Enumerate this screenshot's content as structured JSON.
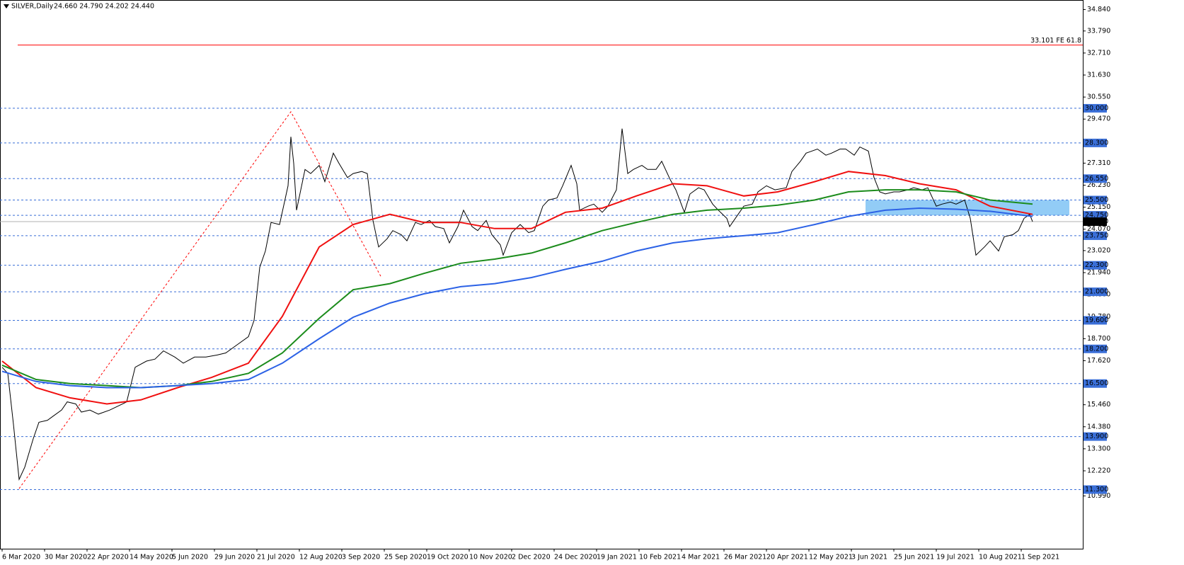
{
  "chart_data": {
    "type": "line",
    "title": "SILVER,Daily",
    "header_quote": "24.660 24.790 24.202 24.440",
    "xlim": [
      -0.75,
      381.75
    ],
    "ylim": [
      8.4,
      35.31
    ],
    "xticks": [
      {
        "value": 0,
        "label": "6 Mar 2020"
      },
      {
        "value": 15,
        "label": "30 Mar 2020"
      },
      {
        "value": 30,
        "label": "22 Apr 2020"
      },
      {
        "value": 45,
        "label": "14 May 2020"
      },
      {
        "value": 60,
        "label": "5 Jun 2020"
      },
      {
        "value": 75,
        "label": "29 Jun 2020"
      },
      {
        "value": 90,
        "label": "21 Jul 2020"
      },
      {
        "value": 105,
        "label": "12 Aug 2020"
      },
      {
        "value": 120,
        "label": "3 Sep 2020"
      },
      {
        "value": 135,
        "label": "25 Sep 2020"
      },
      {
        "value": 150,
        "label": "19 Oct 2020"
      },
      {
        "value": 165,
        "label": "10 Nov 2020"
      },
      {
        "value": 180,
        "label": "2 Dec 2020"
      },
      {
        "value": 195,
        "label": "24 Dec 2020"
      },
      {
        "value": 210,
        "label": "19 Jan 2021"
      },
      {
        "value": 225,
        "label": "10 Feb 2021"
      },
      {
        "value": 240,
        "label": "4 Mar 2021"
      },
      {
        "value": 255,
        "label": "26 Mar 2021"
      },
      {
        "value": 270,
        "label": "20 Apr 2021"
      },
      {
        "value": 285,
        "label": "12 May 2021"
      },
      {
        "value": 300,
        "label": "3 Jun 2021"
      },
      {
        "value": 315,
        "label": "25 Jun 2021"
      },
      {
        "value": 330,
        "label": "19 Jul 2021"
      },
      {
        "value": 345,
        "label": "10 Aug 2021"
      },
      {
        "value": 360,
        "label": "1 Sep 2021"
      }
    ],
    "yticks": [
      {
        "value": 34.84,
        "label": "34.840"
      },
      {
        "value": 33.79,
        "label": "33.790"
      },
      {
        "value": 32.71,
        "label": "32.710"
      },
      {
        "value": 31.63,
        "label": "31.630"
      },
      {
        "value": 30.55,
        "label": "30.550"
      },
      {
        "value": 29.47,
        "label": "29.470"
      },
      {
        "value": 27.31,
        "label": "27.310"
      },
      {
        "value": 26.23,
        "label": "26.230"
      },
      {
        "value": 25.15,
        "label": "25.150"
      },
      {
        "value": 24.07,
        "label": "24.070"
      },
      {
        "value": 23.02,
        "label": "23.020"
      },
      {
        "value": 21.94,
        "label": "21.940"
      },
      {
        "value": 20.86,
        "label": "20.860"
      },
      {
        "value": 19.78,
        "label": "19.780"
      },
      {
        "value": 18.7,
        "label": "18.700"
      },
      {
        "value": 17.62,
        "label": "17.620"
      },
      {
        "value": 15.46,
        "label": "15.460"
      },
      {
        "value": 14.38,
        "label": "14.380"
      },
      {
        "value": 13.3,
        "label": "13.300"
      },
      {
        "value": 12.22,
        "label": "12.220"
      },
      {
        "value": 10.99,
        "label": "10.990"
      }
    ],
    "levels": [
      {
        "value": 30,
        "label": "30.000"
      },
      {
        "value": 28.3,
        "label": "28.300"
      },
      {
        "value": 26.55,
        "label": "26.550"
      },
      {
        "value": 25.5,
        "label": "25.500"
      },
      {
        "value": 24.75,
        "label": "24.750"
      },
      {
        "value": 23.75,
        "label": "23.750"
      },
      {
        "value": 22.3,
        "label": "22.300"
      },
      {
        "value": 21,
        "label": "21.000"
      },
      {
        "value": 19.6,
        "label": "19.600"
      },
      {
        "value": 18.2,
        "label": "18.200"
      },
      {
        "value": 16.5,
        "label": "16.500"
      },
      {
        "value": 13.9,
        "label": "13.900"
      },
      {
        "value": 11.3,
        "label": "11.300"
      }
    ],
    "level_color": "#3a6fd8",
    "last": {
      "value": 24.44,
      "label": "24.440"
    },
    "zone": {
      "x": [
        305,
        377
      ],
      "y": [
        24.75,
        25.5
      ],
      "color": "#7fc3f5"
    },
    "fibo": {
      "x": [
        6,
        102,
        134
      ],
      "y": [
        11.35,
        29.83,
        21.7
      ],
      "color": "#ff0000",
      "target": {
        "value": 33.101,
        "label": "33.101 FE 61.8"
      }
    },
    "series": [
      {
        "color": "#000000",
        "x": [
          0,
          2,
          4,
          6,
          8,
          11,
          13,
          16,
          18,
          21,
          23,
          26,
          28,
          31,
          34,
          38,
          41,
          44,
          47,
          51,
          54,
          57,
          61,
          64,
          68,
          72,
          76,
          79,
          83,
          87,
          89,
          91,
          93,
          95,
          98,
          101,
          102,
          103,
          104,
          107,
          109,
          112,
          114,
          117,
          119,
          122,
          124,
          127,
          129,
          131,
          133,
          136,
          138,
          141,
          143,
          146,
          148,
          151,
          153,
          156,
          158,
          161,
          163,
          166,
          168,
          171,
          173,
          176,
          177,
          180,
          183,
          186,
          188,
          191,
          193,
          196,
          198,
          201,
          203,
          204,
          207,
          209,
          212,
          214,
          217,
          219,
          221,
          223,
          226,
          228,
          231,
          233,
          236,
          238,
          241,
          243,
          246,
          248,
          251,
          253,
          256,
          257,
          260,
          262,
          265,
          267,
          270,
          273,
          277,
          279,
          282,
          284,
          288,
          291,
          293,
          296,
          298,
          301,
          303,
          306,
          308,
          310,
          312,
          315,
          317,
          320,
          322,
          325,
          327,
          330,
          332,
          335,
          337,
          340,
          342,
          344,
          347,
          349,
          352,
          354,
          357,
          359,
          361,
          363,
          364
        ],
        "values": [
          17.3,
          17.0,
          14.5,
          11.8,
          12.4,
          13.8,
          14.6,
          14.7,
          14.9,
          15.2,
          15.6,
          15.5,
          15.1,
          15.2,
          15.0,
          15.2,
          15.4,
          15.6,
          17.3,
          17.6,
          17.7,
          18.1,
          17.8,
          17.5,
          17.8,
          17.8,
          17.9,
          18.0,
          18.4,
          18.8,
          19.6,
          22.2,
          23.0,
          24.4,
          24.3,
          26.2,
          28.6,
          27.3,
          25.0,
          27.0,
          26.8,
          27.2,
          26.4,
          27.8,
          27.3,
          26.6,
          26.8,
          26.9,
          26.8,
          24.5,
          23.2,
          23.6,
          24.0,
          23.8,
          23.5,
          24.4,
          24.3,
          24.5,
          24.2,
          24.1,
          23.4,
          24.2,
          25.0,
          24.2,
          24.0,
          24.5,
          23.8,
          23.3,
          22.8,
          23.9,
          24.3,
          23.9,
          24.0,
          25.2,
          25.5,
          25.6,
          26.2,
          27.2,
          26.3,
          25.0,
          25.2,
          25.3,
          24.9,
          25.2,
          26.0,
          29.0,
          26.8,
          27.0,
          27.2,
          27.0,
          27.0,
          27.4,
          26.5,
          26.0,
          24.9,
          25.8,
          26.1,
          26.0,
          25.3,
          25.0,
          24.6,
          24.2,
          24.8,
          25.2,
          25.3,
          25.9,
          26.2,
          26.0,
          26.1,
          26.9,
          27.4,
          27.8,
          28.0,
          27.7,
          27.8,
          28.0,
          28.0,
          27.7,
          28.1,
          27.9,
          26.6,
          25.9,
          25.8,
          25.9,
          25.9,
          26.0,
          26.1,
          26.0,
          26.1,
          25.2,
          25.3,
          25.4,
          25.3,
          25.5,
          24.6,
          22.8,
          23.2,
          23.5,
          23.0,
          23.7,
          23.8,
          24.0,
          24.6,
          24.8,
          24.44
        ]
      },
      {
        "color": "#f01010",
        "x": [
          0,
          12,
          24,
          37,
          49,
          62,
          74,
          87,
          99,
          112,
          124,
          137,
          149,
          162,
          174,
          187,
          199,
          212,
          224,
          237,
          249,
          262,
          274,
          287,
          299,
          312,
          324,
          337,
          349,
          364
        ],
        "values": [
          17.6,
          16.3,
          15.8,
          15.5,
          15.7,
          16.3,
          16.8,
          17.5,
          19.8,
          23.2,
          24.3,
          24.8,
          24.4,
          24.4,
          24.1,
          24.1,
          24.9,
          25.1,
          25.7,
          26.3,
          26.2,
          25.7,
          25.9,
          26.4,
          26.9,
          26.7,
          26.3,
          26.0,
          25.2,
          24.8
        ]
      },
      {
        "color": "#1c8c1c",
        "x": [
          0,
          12,
          24,
          37,
          49,
          62,
          74,
          87,
          99,
          112,
          124,
          137,
          149,
          162,
          174,
          187,
          199,
          212,
          224,
          237,
          249,
          262,
          274,
          287,
          299,
          312,
          324,
          337,
          349,
          364
        ],
        "values": [
          17.4,
          16.7,
          16.5,
          16.4,
          16.3,
          16.4,
          16.6,
          17.0,
          18.0,
          19.7,
          21.1,
          21.4,
          21.9,
          22.4,
          22.6,
          22.9,
          23.4,
          24.0,
          24.4,
          24.8,
          25.0,
          25.1,
          25.25,
          25.5,
          25.9,
          26.0,
          26.0,
          25.9,
          25.5,
          25.3
        ]
      },
      {
        "color": "#2c62e6",
        "x": [
          0,
          12,
          24,
          37,
          49,
          62,
          74,
          87,
          99,
          112,
          124,
          137,
          149,
          162,
          174,
          187,
          199,
          212,
          224,
          237,
          249,
          262,
          274,
          287,
          299,
          312,
          324,
          337,
          349,
          364
        ],
        "values": [
          17.1,
          16.6,
          16.4,
          16.3,
          16.3,
          16.4,
          16.5,
          16.7,
          17.5,
          18.7,
          19.75,
          20.45,
          20.9,
          21.25,
          21.4,
          21.7,
          22.1,
          22.5,
          23.0,
          23.4,
          23.6,
          23.75,
          23.9,
          24.3,
          24.7,
          25.0,
          25.1,
          25.05,
          24.95,
          24.7
        ]
      }
    ]
  }
}
